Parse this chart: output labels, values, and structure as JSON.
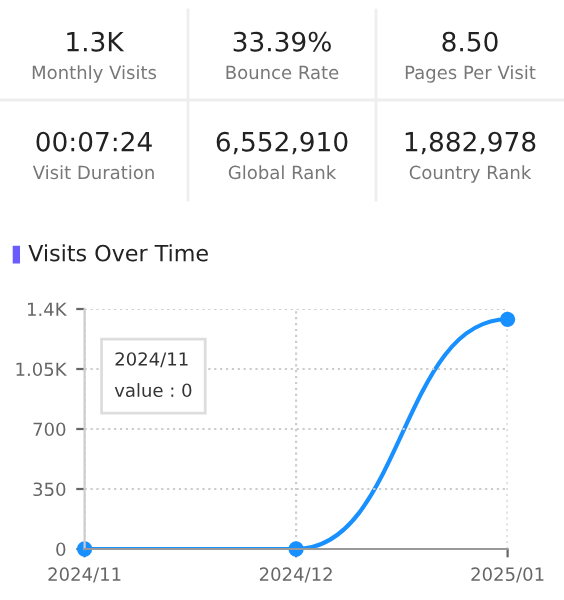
{
  "chart_data": [
    {
      "type": "other",
      "categories": [
        "Monthly Visits",
        "Bounce Rate",
        "Pages Per Visit",
        "Visit Duration",
        "Global Rank",
        "Country Rank"
      ],
      "value_labels": [
        "1.3K",
        "33.39%",
        "8.50",
        "00:07:24",
        "6,552,910",
        "1,882,978"
      ]
    },
    {
      "type": "line",
      "title": "Visits Over Time",
      "categories": [
        "2024/11",
        "2024/12",
        "2025/01"
      ],
      "series": [
        {
          "color": "#1890ff",
          "values": [
            0,
            0,
            1340
          ]
        }
      ],
      "ylim": [
        0,
        1400
      ],
      "yticks": [
        0,
        350,
        700,
        {
          "value": 1050,
          "label": "1.05K"
        },
        {
          "value": 1400,
          "label": "1.4K"
        }
      ],
      "grid": true,
      "marker": "circle",
      "line_style": "solid",
      "annotations": [
        "2024/11\nvalue : 0"
      ]
    }
  ]
}
